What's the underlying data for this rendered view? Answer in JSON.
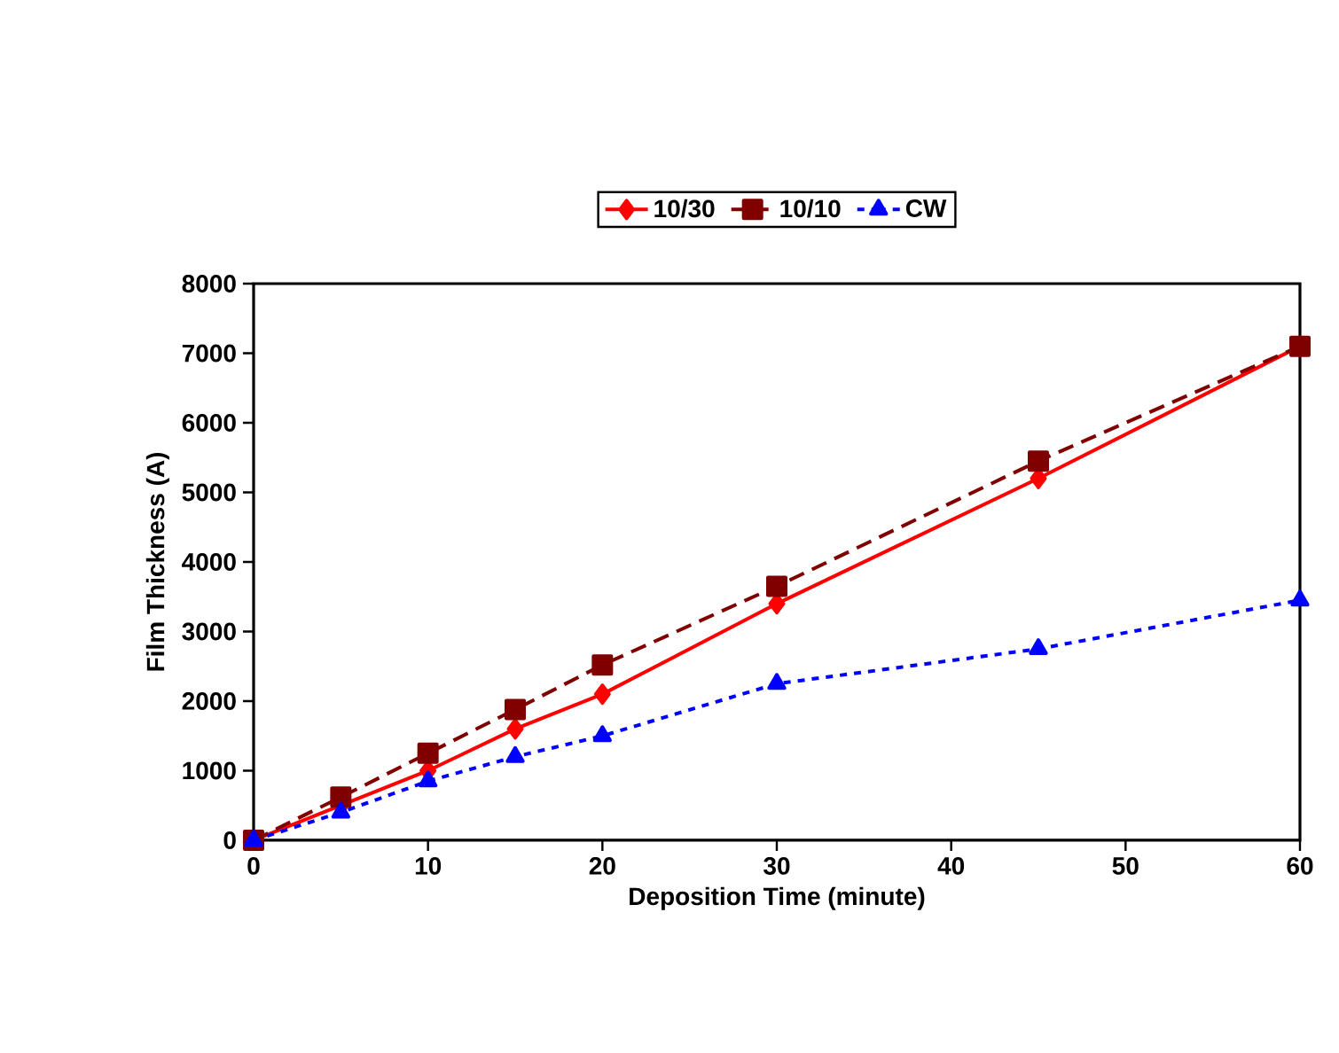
{
  "chart_data": {
    "type": "line",
    "xlabel": "Deposition Time (minute)",
    "ylabel": "Film Thickness (A)",
    "x": [
      0,
      5,
      10,
      15,
      20,
      30,
      45,
      60
    ],
    "xlim": [
      0,
      60
    ],
    "xticks": [
      0,
      10,
      20,
      30,
      40,
      50,
      60
    ],
    "ylim": [
      0,
      8000
    ],
    "yticks": [
      0,
      1000,
      2000,
      3000,
      4000,
      5000,
      6000,
      7000,
      8000
    ],
    "legend": "top",
    "series": [
      {
        "name": "10/30",
        "color": "#ff0000",
        "marker": "diamond",
        "line_style": "solid",
        "values": [
          0,
          500,
          1000,
          1600,
          2100,
          3400,
          5200,
          7100
        ]
      },
      {
        "name": "10/10",
        "color": "#800000",
        "marker": "square",
        "line_style": "dashed",
        "values": [
          0,
          620,
          1250,
          1880,
          2520,
          3650,
          5450,
          7100
        ]
      },
      {
        "name": "CW",
        "color": "#0000ff",
        "marker": "triangle",
        "line_style": "dotted",
        "values": [
          0,
          400,
          850,
          1200,
          1500,
          2250,
          2750,
          3450
        ]
      }
    ]
  }
}
